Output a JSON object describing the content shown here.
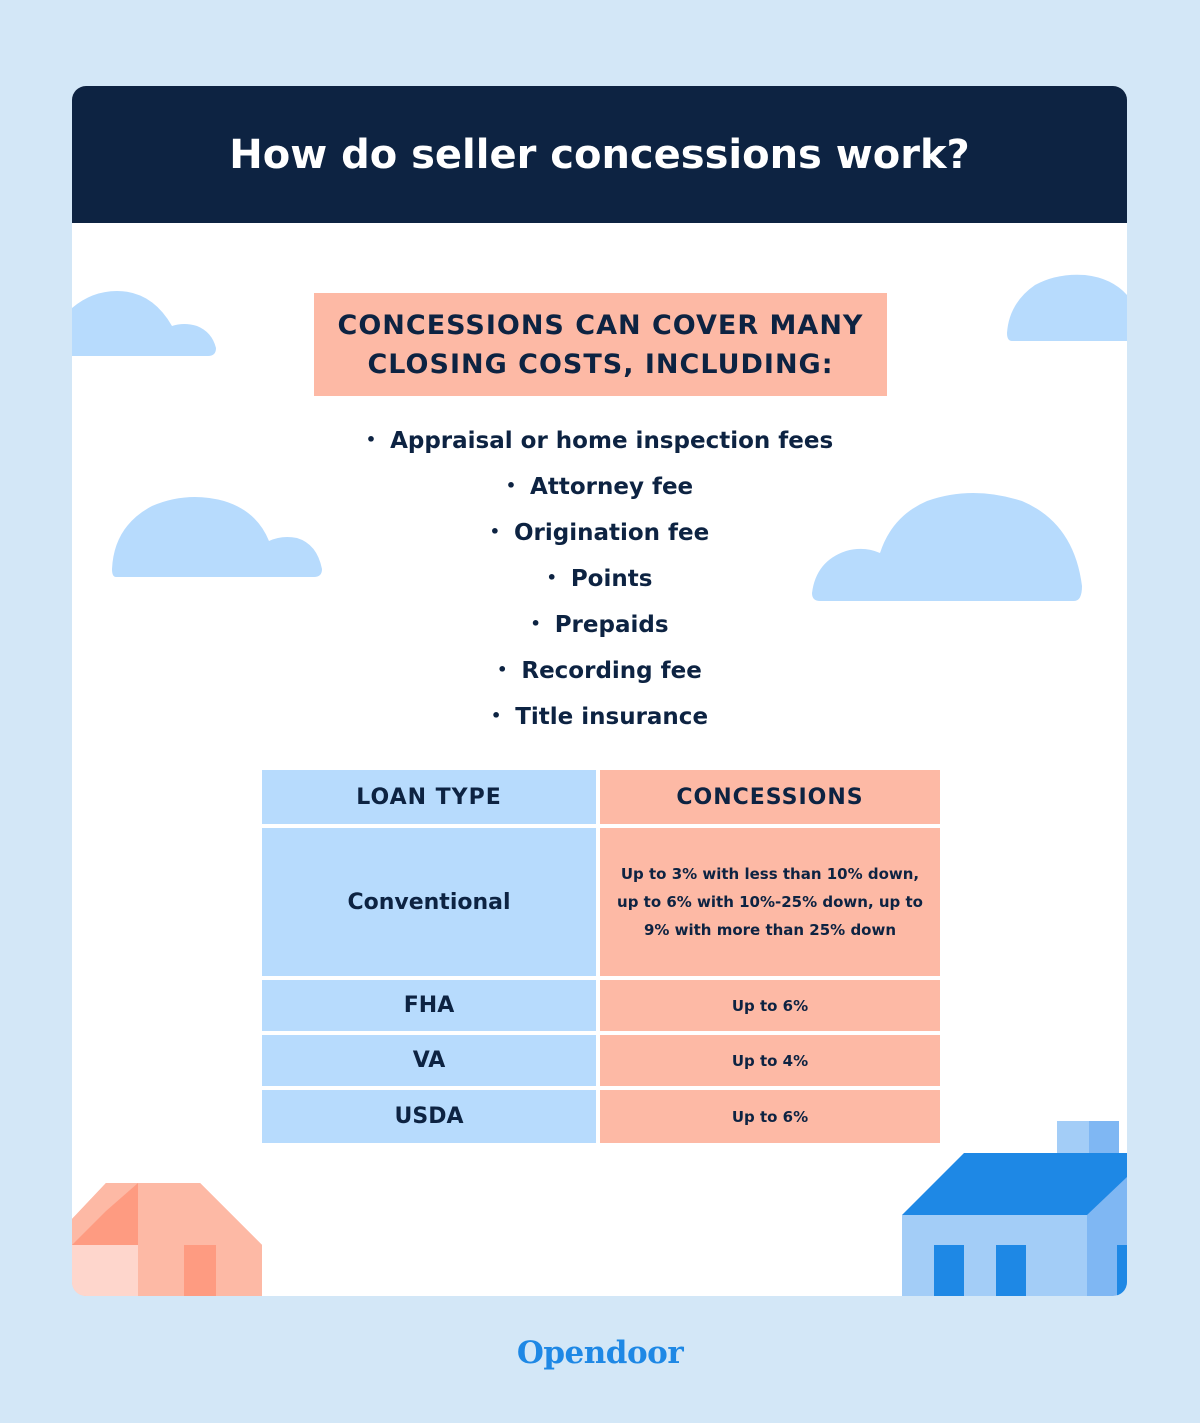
{
  "title": "How do seller concessions work?",
  "callout": "CONCESSIONS CAN COVER MANY CLOSING COSTS, INCLUDING:",
  "costs": [
    "Appraisal or home inspection fees",
    "Attorney fee",
    "Origination fee",
    "Points",
    "Prepaids",
    "Recording fee",
    "Title insurance"
  ],
  "table": {
    "headers": [
      "LOAN TYPE",
      "CONCESSIONS"
    ],
    "rows": [
      {
        "loan": "Conventional",
        "concession": "Up to 3% with less than 10% down, up to 6% with 10%-25% down, up to 9% with more than 25% down"
      },
      {
        "loan": "FHA",
        "concession": "Up to 6%"
      },
      {
        "loan": "VA",
        "concession": "Up to 4%"
      },
      {
        "loan": "USDA",
        "concession": "Up to 6%"
      }
    ]
  },
  "brand": "Opendoor",
  "colors": {
    "background": "#d3e7f7",
    "header": "#0d2342",
    "salmon": "#fdb9a5",
    "light_blue": "#b7dbfd",
    "brand_blue": "#1e88e5"
  },
  "icons": [
    "cloud-icon",
    "house-icon"
  ]
}
